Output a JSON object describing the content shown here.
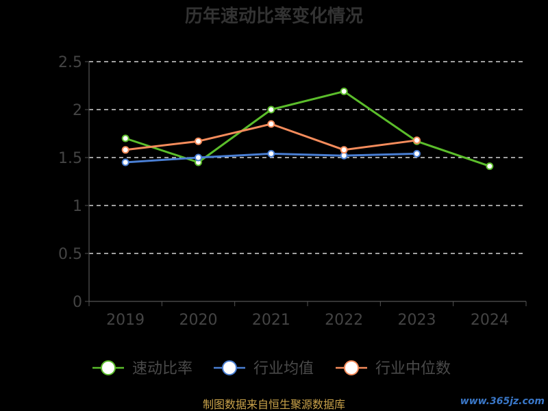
{
  "chart_data": {
    "type": "line",
    "title": "历年速动比率变化情况",
    "categories": [
      "2019",
      "2020",
      "2021",
      "2022",
      "2023",
      "2024"
    ],
    "y_ticks": [
      "0",
      "0.5",
      "1",
      "1.5",
      "2",
      "2.5"
    ],
    "ylim": [
      0,
      2.5
    ],
    "grid": true,
    "legend_position": "bottom",
    "series": [
      {
        "name": "速动比率",
        "color": "#5bbd2b",
        "values": [
          1.7,
          1.45,
          2.0,
          2.19,
          1.67,
          1.41
        ]
      },
      {
        "name": "行业均值",
        "color": "#4a7fd4",
        "values": [
          1.45,
          1.5,
          1.54,
          1.52,
          1.54,
          null
        ]
      },
      {
        "name": "行业中位数",
        "color": "#f58c5c",
        "values": [
          1.58,
          1.67,
          1.85,
          1.58,
          1.68,
          null
        ]
      }
    ]
  },
  "source_note": "制图数据来自恒生聚源数据库",
  "watermark": "www.365jz.com"
}
